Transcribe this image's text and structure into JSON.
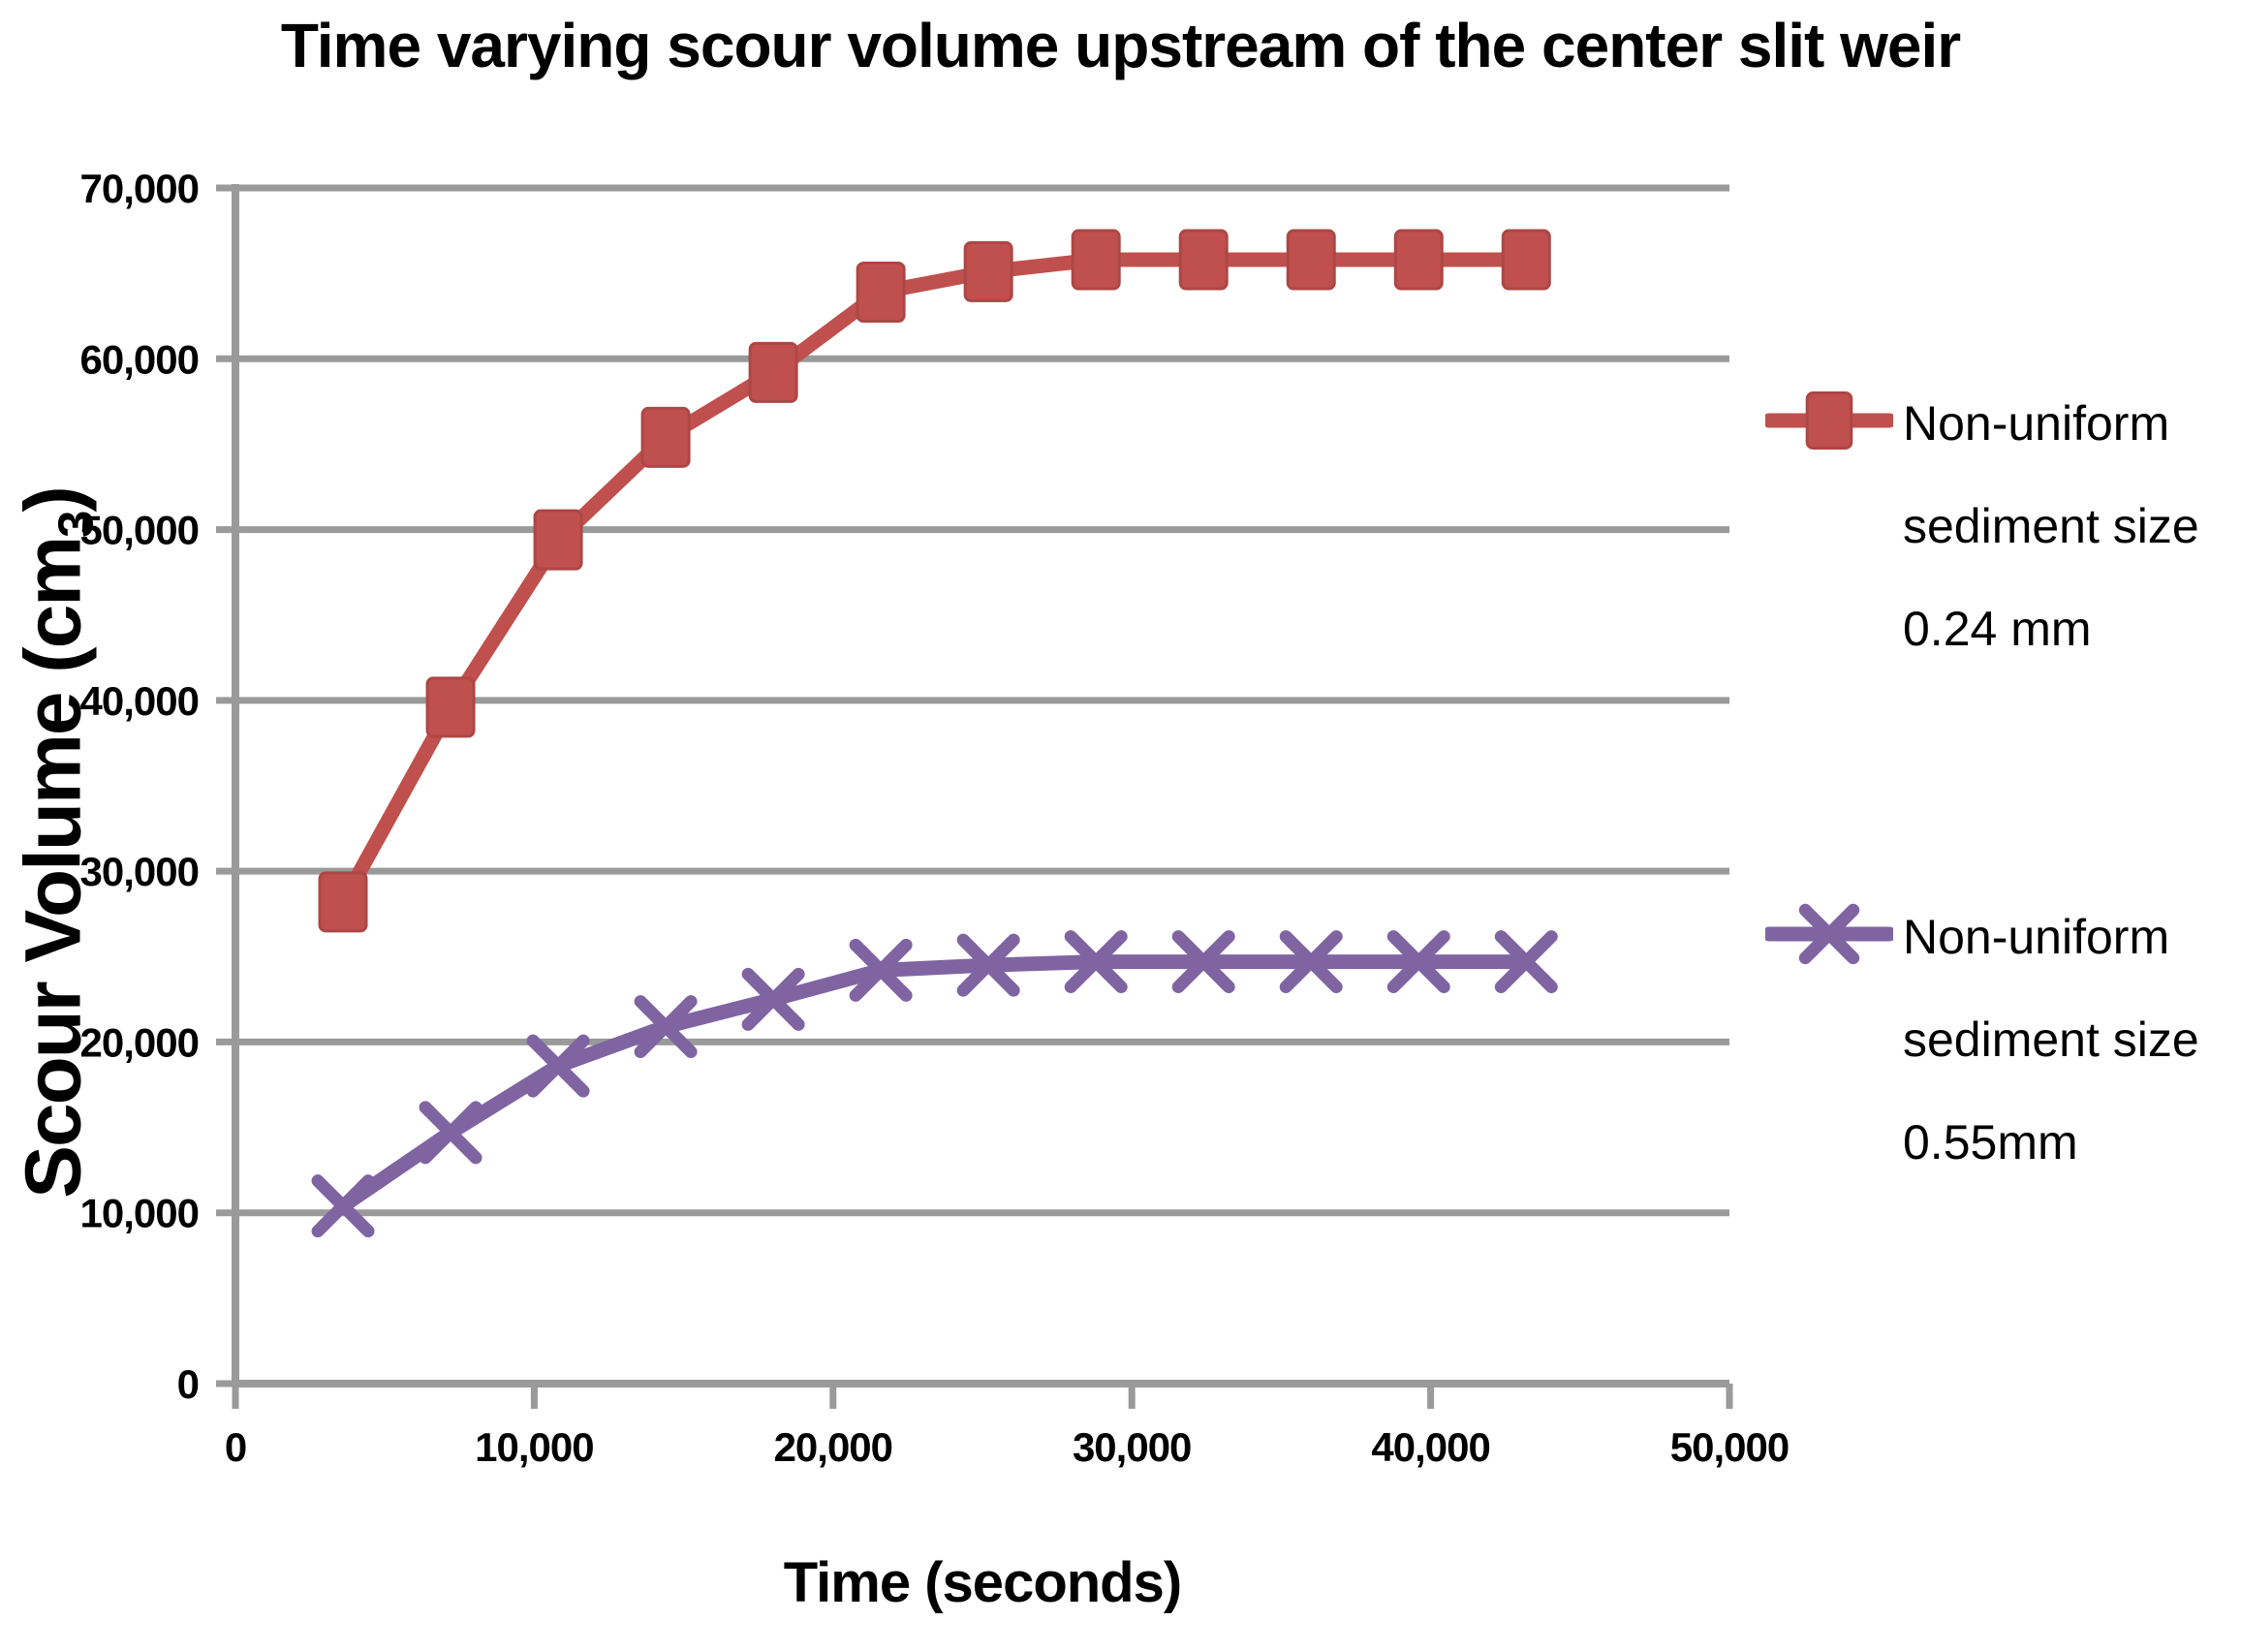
{
  "chart_data": {
    "type": "line",
    "title": "Time varying scour volume upstream of the center slit weir",
    "xlabel": "Time (seconds)",
    "ylabel": "Scour Volume (cm3)",
    "ylabel_parts": [
      "Scour Volume (cm",
      "3",
      ")"
    ],
    "xlim": [
      0,
      50000
    ],
    "ylim": [
      0,
      70000
    ],
    "grid": "horizontal gridlines on",
    "grid_color": "#9A9A9A",
    "legend_position": "right",
    "x": [
      3600,
      7200,
      10800,
      14400,
      18000,
      21600,
      25200,
      28800,
      32400,
      36000,
      39600,
      43200
    ],
    "x_ticks": [
      {
        "v": 0,
        "label": "0"
      },
      {
        "v": 10000,
        "label": "10,000"
      },
      {
        "v": 20000,
        "label": "20,000"
      },
      {
        "v": 30000,
        "label": "30,000"
      },
      {
        "v": 40000,
        "label": "40,000"
      },
      {
        "v": 50000,
        "label": "50,000"
      }
    ],
    "y_ticks": [
      {
        "v": 0,
        "label": "0"
      },
      {
        "v": 10000,
        "label": "10,000"
      },
      {
        "v": 20000,
        "label": "20,000"
      },
      {
        "v": 30000,
        "label": "30,000"
      },
      {
        "v": 40000,
        "label": "40,000"
      },
      {
        "v": 50000,
        "label": "50,000"
      },
      {
        "v": 60000,
        "label": "60,000"
      },
      {
        "v": 70000,
        "label": "70,000"
      }
    ],
    "series": [
      {
        "name": "Non-uniform sediment size 0.24 mm",
        "legend_lines": [
          "Non-uniform",
          "sediment size",
          "0.24 mm"
        ],
        "marker": "square",
        "color": "#C0504D",
        "edge": "#AC4745",
        "values": [
          28200,
          39600,
          49400,
          55400,
          59200,
          63900,
          65100,
          65800,
          65800,
          65800,
          65800,
          65800
        ]
      },
      {
        "name": "Non-uniform sediment size 0.55mm",
        "legend_lines": [
          "Non-uniform",
          "sediment size",
          "0.55mm"
        ],
        "marker": "x",
        "color": "#8064A2",
        "edge": "#8064A2",
        "values": [
          10400,
          14700,
          18600,
          20900,
          22500,
          24200,
          24500,
          24700,
          24700,
          24700,
          24700,
          24700
        ]
      }
    ]
  }
}
